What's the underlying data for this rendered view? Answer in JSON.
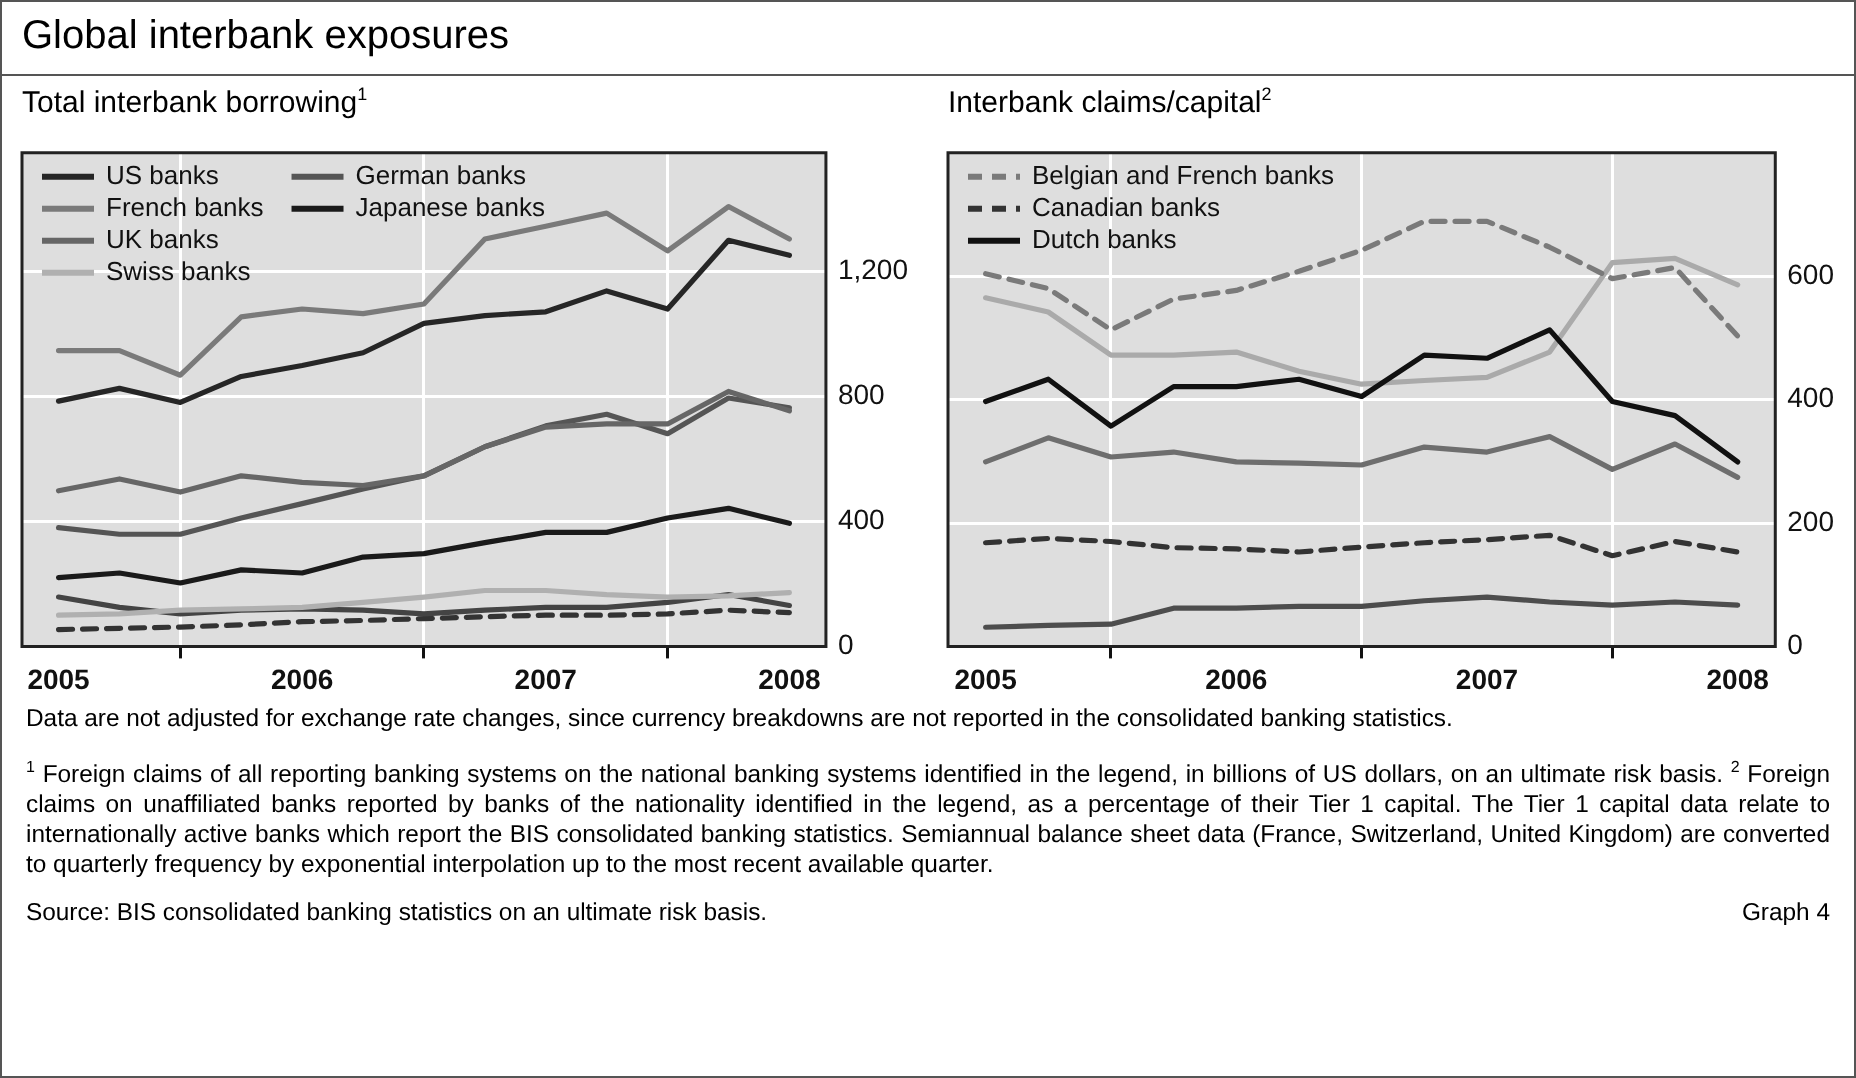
{
  "chart_data": [
    {
      "type": "other",
      "title": "Global interbank exposures",
      "annotations": [
        "Data are not adjusted for exchange rate changes, since currency breakdowns are not reported in the consolidated banking statistics.",
        "$^{1}$ Foreign claims of all reporting banking systems on the national banking systems identified in the legend, in billions of US dollars, on an ultimate risk basis.  $^{2}$ Foreign claims on unaffiliated banks reported by banks of the nationality identified in the legend, as a percentage of their Tier 1 capital. The Tier 1 capital data relate to internationally active banks which report the BIS consolidated banking statistics. Semiannual balance sheet data (France, Switzerland, United Kingdom) are converted to quarterly frequency by exponential interpolation up to the most recent available quarter.",
        "Source: BIS consolidated banking statistics on an ultimate risk basis.",
        "Graph 4"
      ]
    },
    {
      "type": "line",
      "title": "Total interbank borrowing$^{1}$",
      "x": [
        2005,
        2005.25,
        2005.5,
        2005.75,
        2006,
        2006.25,
        2006.5,
        2006.75,
        2007,
        2007.25,
        2007.5,
        2007.75,
        2008
      ],
      "xlim": [
        2004.85,
        2008.15
      ],
      "xticks": [
        2005,
        {
          "value": 2005.5,
          "label": null
        },
        2006,
        {
          "value": 2006.5,
          "label": null
        },
        2007,
        {
          "value": 2007.5,
          "label": null
        },
        2008
      ],
      "ylim": [
        0,
        1580
      ],
      "yticks": [
        0,
        400,
        800,
        {
          "value": 1200,
          "label": "1,200"
        }
      ],
      "grid": true,
      "legend": "top left",
      "marker": "none",
      "series": [
        {
          "name": "US banks",
          "color": "#262626",
          "values": [
            785,
            826,
            781,
            864,
            899,
            940,
            1034,
            1059,
            1071,
            1138,
            1080,
            1300,
            1252
          ]
        },
        {
          "name": "French banks",
          "color": "#7a7a7a",
          "values": [
            947,
            947,
            868,
            1055,
            1080,
            1065,
            1096,
            1304,
            1345,
            1387,
            1266,
            1408,
            1304
          ]
        },
        {
          "name": "UK banks",
          "color": "#666666",
          "values": [
            498,
            536,
            494,
            546,
            525,
            515,
            546,
            639,
            702,
            712,
            712,
            816,
            754
          ]
        },
        {
          "name": "Swiss banks",
          "color": "#b0b0b0",
          "values": [
            100,
            104,
            116,
            120,
            125,
            141,
            158,
            179,
            179,
            166,
            158,
            162,
            172
          ]
        },
        {
          "name": "German banks",
          "color": "#555555",
          "values": [
            380,
            359,
            359,
            411,
            457,
            504,
            546,
            639,
            706,
            743,
            681,
            795,
            764
          ]
        },
        {
          "name": "Japanese banks",
          "color": "#1a1a1a",
          "values": [
            220,
            235,
            203,
            245,
            235,
            286,
            297,
            332,
            365,
            365,
            411,
            442,
            394
          ]
        },
        {
          "color": "#444444",
          "values": [
            158,
            125,
            104,
            116,
            120,
            116,
            104,
            116,
            125,
            125,
            141,
            166,
            131
          ]
        },
        {
          "color": "#333333",
          "line_style": "dashed",
          "values": [
            54,
            58,
            62,
            69,
            79,
            83,
            89,
            95,
            100,
            100,
            104,
            116,
            108
          ]
        }
      ]
    },
    {
      "type": "line",
      "title": "Interbank claims/capital$^{2}$",
      "x": [
        2005,
        2005.25,
        2005.5,
        2005.75,
        2006,
        2006.25,
        2006.5,
        2006.75,
        2007,
        2007.25,
        2007.5,
        2007.75,
        2008
      ],
      "xlim": [
        2004.85,
        2008.15
      ],
      "xticks": [
        2005,
        {
          "value": 2005.5,
          "label": null
        },
        2006,
        {
          "value": 2006.5,
          "label": null
        },
        2007,
        {
          "value": 2007.5,
          "label": null
        },
        2008
      ],
      "ylim": [
        0,
        800
      ],
      "yticks": [
        0,
        200,
        400,
        600
      ],
      "grid": true,
      "legend": "top left",
      "marker": "none",
      "series": [
        {
          "name": "Belgian and French banks",
          "color": "#7a7a7a",
          "line_style": "dashed",
          "values": [
            604,
            580,
            513,
            563,
            577,
            608,
            642,
            689,
            689,
            647,
            596,
            614,
            503
          ]
        },
        {
          "name": "Canadian banks",
          "color": "#333333",
          "line_style": "dashed",
          "values": [
            168,
            175,
            170,
            160,
            158,
            153,
            161,
            168,
            173,
            180,
            147,
            170,
            153
          ]
        },
        {
          "name": "Dutch banks",
          "color": "#111111",
          "values": [
            397,
            433,
            357,
            421,
            421,
            433,
            405,
            472,
            467,
            513,
            397,
            374,
            299
          ]
        },
        {
          "color": "#aaaaaa",
          "values": [
            565,
            542,
            472,
            472,
            477,
            446,
            425,
            431,
            436,
            477,
            622,
            629,
            586
          ]
        },
        {
          "color": "#6e6e6e",
          "values": [
            299,
            338,
            307,
            315,
            299,
            297,
            294,
            323,
            315,
            340,
            287,
            328,
            274
          ]
        },
        {
          "color": "#4d4d4d",
          "values": [
            31,
            34,
            36,
            62,
            62,
            65,
            65,
            74,
            80,
            72,
            67,
            72,
            67
          ]
        }
      ]
    }
  ]
}
